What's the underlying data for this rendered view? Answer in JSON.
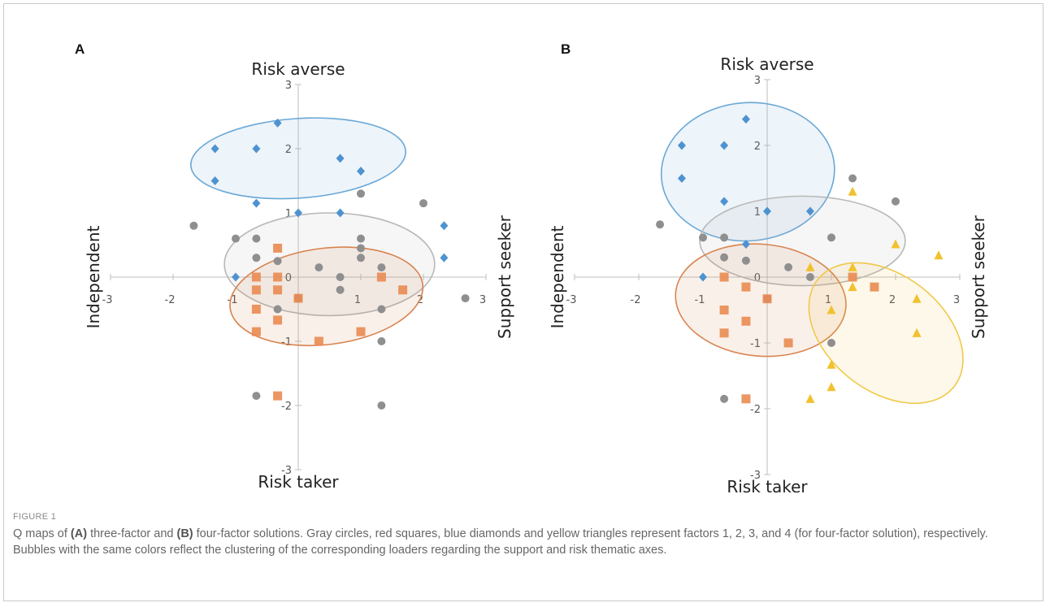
{
  "figure": {
    "label": "FIGURE 1",
    "caption": {
      "t1": "Q maps of ",
      "b1": "(A)",
      "t2": " three-factor and ",
      "b2": "(B)",
      "t3": " four-factor solutions. Gray circles, red squares, blue diamonds and yellow triangles represent factors 1, 2, 3, and 4 (for four-factor solution), respectively. Bubbles with the same colors reflect the clustering of the corresponding loaders regarding the support and risk thematic axes."
    }
  },
  "colors": {
    "gray": "#8f8f8f",
    "orange": "#e98b52",
    "orange_light": "#f0ad84",
    "blue": "#4e93cf",
    "blue_light": "#8fbbe6",
    "yellow": "#f2c12e",
    "yellow_light": "#f7d978",
    "blue_ellipse": "#6aa8d6",
    "gray_ellipse": "#b8b8b8",
    "orange_ellipse": "#d8844f",
    "yellow_ellipse": "#f0c94a",
    "axis": "#bfbfbf"
  },
  "chart_data": [
    {
      "type": "scatter",
      "panel_label": "A",
      "title": "",
      "axis_top": "Risk averse",
      "axis_bottom": "Risk taker",
      "axis_left": "Independent",
      "axis_right": "Support seeker",
      "xlim": [
        -3,
        3
      ],
      "ylim": [
        -3,
        3
      ],
      "xticks": [
        -3,
        -2,
        -1,
        0,
        1,
        2,
        3
      ],
      "yticks": [
        -3,
        -2,
        -1,
        0,
        1,
        2,
        3
      ],
      "grid": false,
      "series": [
        {
          "name": "Gray circles",
          "marker": "circle",
          "points": [
            [
              -1.67,
              0.8
            ],
            [
              -1.0,
              0.6
            ],
            [
              -0.67,
              0.6
            ],
            [
              -0.67,
              0.3
            ],
            [
              -0.33,
              0.25
            ],
            [
              0.33,
              0.15
            ],
            [
              0.67,
              0.0
            ],
            [
              0.67,
              -0.2
            ],
            [
              1.0,
              0.6
            ],
            [
              1.0,
              0.45
            ],
            [
              1.0,
              0.3
            ],
            [
              1.0,
              1.3
            ],
            [
              1.33,
              0.15
            ],
            [
              1.33,
              -0.5
            ],
            [
              1.33,
              -1.0
            ],
            [
              1.33,
              -2.0
            ],
            [
              2.0,
              1.15
            ],
            [
              2.67,
              -0.33
            ],
            [
              -0.33,
              -0.5
            ],
            [
              -0.67,
              -1.85
            ],
            [
              0,
              -0.33
            ]
          ]
        },
        {
          "name": "Red squares",
          "marker": "square",
          "points": [
            [
              -0.33,
              0.45
            ],
            [
              -0.33,
              0.0
            ],
            [
              -0.33,
              -0.2
            ],
            [
              -0.33,
              -0.67
            ],
            [
              -0.67,
              -0.2
            ],
            [
              -0.67,
              -0.5
            ],
            [
              -0.67,
              0.0
            ],
            [
              -0.67,
              -0.85
            ],
            [
              0,
              -0.33
            ],
            [
              0.33,
              -1.0
            ],
            [
              1.0,
              -0.85
            ],
            [
              1.33,
              0.0
            ],
            [
              1.67,
              -0.2
            ],
            [
              -0.33,
              -1.85
            ]
          ]
        },
        {
          "name": "Blue diamonds",
          "marker": "diamond",
          "points": [
            [
              -1.33,
              2.0
            ],
            [
              -1.33,
              1.5
            ],
            [
              -0.67,
              2.0
            ],
            [
              -0.67,
              1.15
            ],
            [
              -0.33,
              2.4
            ],
            [
              0.67,
              1.85
            ],
            [
              1.0,
              1.65
            ],
            [
              0.67,
              1.0
            ],
            [
              0.0,
              1.0
            ],
            [
              -1.0,
              0.0
            ],
            [
              2.33,
              0.8
            ],
            [
              2.33,
              0.3
            ]
          ]
        }
      ],
      "ellipses": [
        {
          "name": "blue",
          "cx": 0.0,
          "cy": 1.85,
          "rx": 1.72,
          "ry": 0.62,
          "angle": 4
        },
        {
          "name": "gray",
          "cx": 0.5,
          "cy": 0.2,
          "rx": 1.68,
          "ry": 0.8,
          "angle": 0
        },
        {
          "name": "orange",
          "cx": 0.45,
          "cy": -0.3,
          "rx": 1.55,
          "ry": 0.75,
          "angle": 7
        }
      ]
    },
    {
      "type": "scatter",
      "panel_label": "B",
      "title": "",
      "axis_top": "Risk averse",
      "axis_bottom": "Risk taker",
      "axis_left": "Independent",
      "axis_right": "Support seeker",
      "xlim": [
        -3,
        3
      ],
      "ylim": [
        -3,
        3
      ],
      "xticks": [
        -3,
        -2,
        -1,
        0,
        1,
        2,
        3
      ],
      "yticks": [
        -3,
        -2,
        -1,
        0,
        1,
        2,
        3
      ],
      "grid": false,
      "series": [
        {
          "name": "Gray circles",
          "marker": "circle",
          "points": [
            [
              -1.67,
              0.8
            ],
            [
              -1.0,
              0.6
            ],
            [
              -0.67,
              0.6
            ],
            [
              -0.67,
              0.3
            ],
            [
              -0.33,
              0.25
            ],
            [
              0.33,
              0.15
            ],
            [
              0.67,
              0.0
            ],
            [
              1.0,
              0.6
            ],
            [
              1.33,
              1.5
            ],
            [
              2.0,
              1.15
            ],
            [
              1.0,
              -1.0
            ],
            [
              -0.67,
              -1.85
            ],
            [
              0,
              -0.33
            ]
          ]
        },
        {
          "name": "Red squares",
          "marker": "square",
          "points": [
            [
              -0.67,
              0.0
            ],
            [
              -0.33,
              -0.15
            ],
            [
              -0.67,
              -0.5
            ],
            [
              -0.67,
              -0.85
            ],
            [
              -0.33,
              -0.67
            ],
            [
              0,
              -0.33
            ],
            [
              0.33,
              -1.0
            ],
            [
              1.33,
              0.0
            ],
            [
              1.67,
              -0.15
            ],
            [
              -0.33,
              -1.85
            ]
          ]
        },
        {
          "name": "Blue diamonds",
          "marker": "diamond",
          "points": [
            [
              -1.33,
              2.0
            ],
            [
              -1.33,
              1.5
            ],
            [
              -0.67,
              2.0
            ],
            [
              -0.67,
              1.15
            ],
            [
              -0.33,
              2.4
            ],
            [
              0.0,
              1.0
            ],
            [
              0.67,
              1.0
            ],
            [
              -0.33,
              0.5
            ],
            [
              -1.0,
              0.0
            ]
          ]
        },
        {
          "name": "Yellow triangles",
          "marker": "triangle",
          "points": [
            [
              1.33,
              1.3
            ],
            [
              2.0,
              0.5
            ],
            [
              2.67,
              0.33
            ],
            [
              0.67,
              0.15
            ],
            [
              1.33,
              0.15
            ],
            [
              1.33,
              -0.15
            ],
            [
              1.0,
              -0.5
            ],
            [
              2.33,
              -0.33
            ],
            [
              2.33,
              -0.85
            ],
            [
              1.0,
              -1.33
            ],
            [
              1.0,
              -1.67
            ],
            [
              0.67,
              -1.85
            ]
          ]
        }
      ],
      "ellipses": [
        {
          "name": "blue",
          "cx": -0.3,
          "cy": 1.6,
          "rx": 1.35,
          "ry": 1.05,
          "angle": 4
        },
        {
          "name": "gray",
          "cx": 0.55,
          "cy": 0.55,
          "rx": 1.6,
          "ry": 0.68,
          "angle": 0
        },
        {
          "name": "orange",
          "cx": -0.1,
          "cy": -0.35,
          "rx": 1.33,
          "ry": 0.85,
          "angle": -5
        },
        {
          "name": "yellow",
          "cx": 1.85,
          "cy": -0.85,
          "rx": 1.35,
          "ry": 0.88,
          "angle": -38
        }
      ]
    }
  ]
}
